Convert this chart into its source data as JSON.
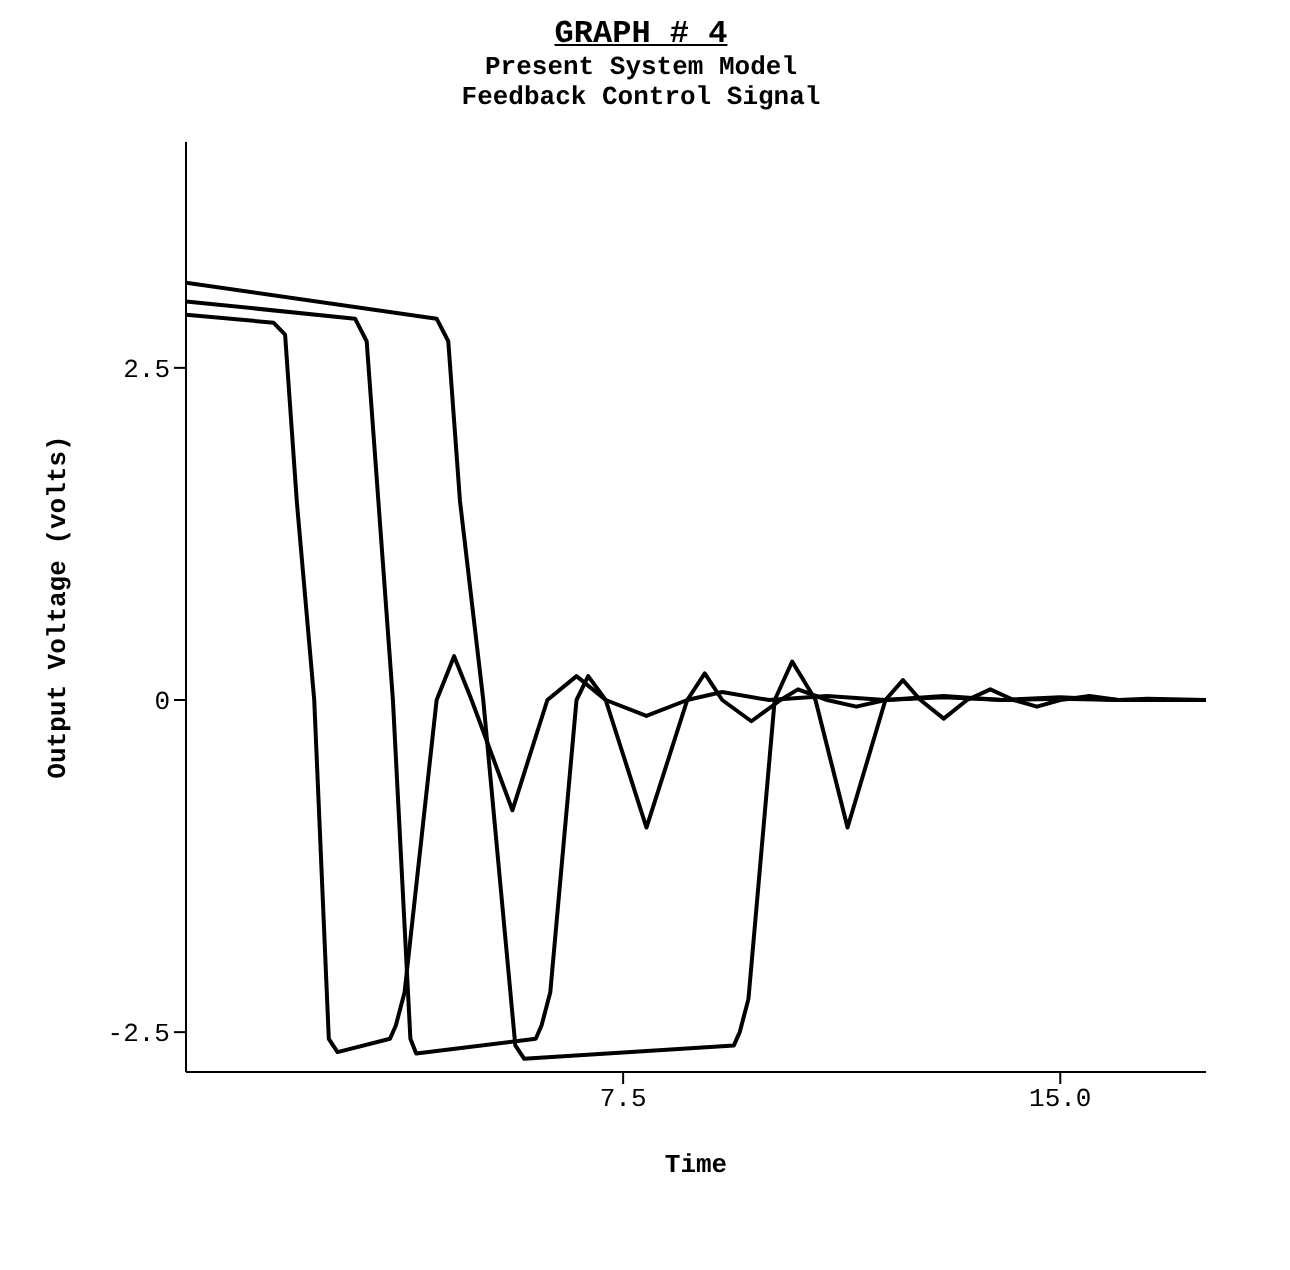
{
  "chart_data": {
    "type": "line",
    "title": "GRAPH # 4",
    "subtitle": "Present System Model\nFeedback Control Signal",
    "xlabel": "Time",
    "ylabel": "Output Voltage (volts)",
    "xlim": [
      0,
      17.5
    ],
    "xticks": [
      7.5,
      {
        "value": 15,
        "label": "15.0"
      }
    ],
    "ylim": [
      -2.8,
      4.2
    ],
    "yticks": [
      -2.5,
      0,
      2.5
    ],
    "marker": "none",
    "line_style": "solid",
    "series": [
      {
        "color": "#000000",
        "x": [
          0,
          1.5,
          1.7,
          1.9,
          2.2,
          2.45,
          2.6,
          3.5,
          3.6,
          3.75,
          4.3,
          4.6,
          4.9,
          5.6,
          6.2,
          6.7,
          7.2,
          7.9,
          8.6,
          9.2,
          10,
          11,
          12,
          13,
          14,
          15,
          16,
          17.5
        ],
        "values": [
          2.9,
          2.84,
          2.75,
          1.5,
          0,
          -2.55,
          -2.65,
          -2.55,
          -2.45,
          -2.2,
          0,
          0.33,
          0,
          -0.83,
          0,
          0.18,
          0,
          -0.12,
          0,
          0.06,
          0,
          0.03,
          0,
          0.02,
          0,
          0.01,
          0,
          0
        ]
      },
      {
        "color": "#000000",
        "x": [
          0,
          2.9,
          3.1,
          3.3,
          3.55,
          3.85,
          3.95,
          6,
          6.1,
          6.25,
          6.7,
          6.9,
          7.2,
          7.9,
          8.6,
          8.9,
          9.2,
          9.7,
          10.2,
          10.5,
          11,
          11.5,
          12,
          13,
          14,
          15,
          16,
          17.5
        ],
        "values": [
          3.0,
          2.87,
          2.7,
          1.5,
          0,
          -2.55,
          -2.66,
          -2.55,
          -2.45,
          -2.2,
          0,
          0.18,
          0,
          -0.96,
          0,
          0.2,
          0,
          -0.16,
          0,
          0.08,
          0,
          -0.05,
          0,
          0.03,
          0,
          0.02,
          0,
          0
        ]
      },
      {
        "color": "#000000",
        "x": [
          0,
          4.3,
          4.5,
          4.7,
          5.1,
          5.65,
          5.8,
          9.4,
          9.5,
          9.65,
          10.1,
          10.4,
          10.8,
          11.35,
          12,
          12.3,
          12.6,
          13,
          13.4,
          13.8,
          14.2,
          14.6,
          15,
          15.5,
          16,
          16.5,
          17.5
        ],
        "values": [
          3.14,
          2.87,
          2.7,
          1.5,
          0,
          -2.6,
          -2.7,
          -2.6,
          -2.5,
          -2.25,
          0,
          0.29,
          0,
          -0.96,
          0,
          0.15,
          0,
          -0.14,
          0,
          0.08,
          0,
          -0.05,
          0,
          0.03,
          0,
          0.01,
          0
        ]
      }
    ]
  }
}
